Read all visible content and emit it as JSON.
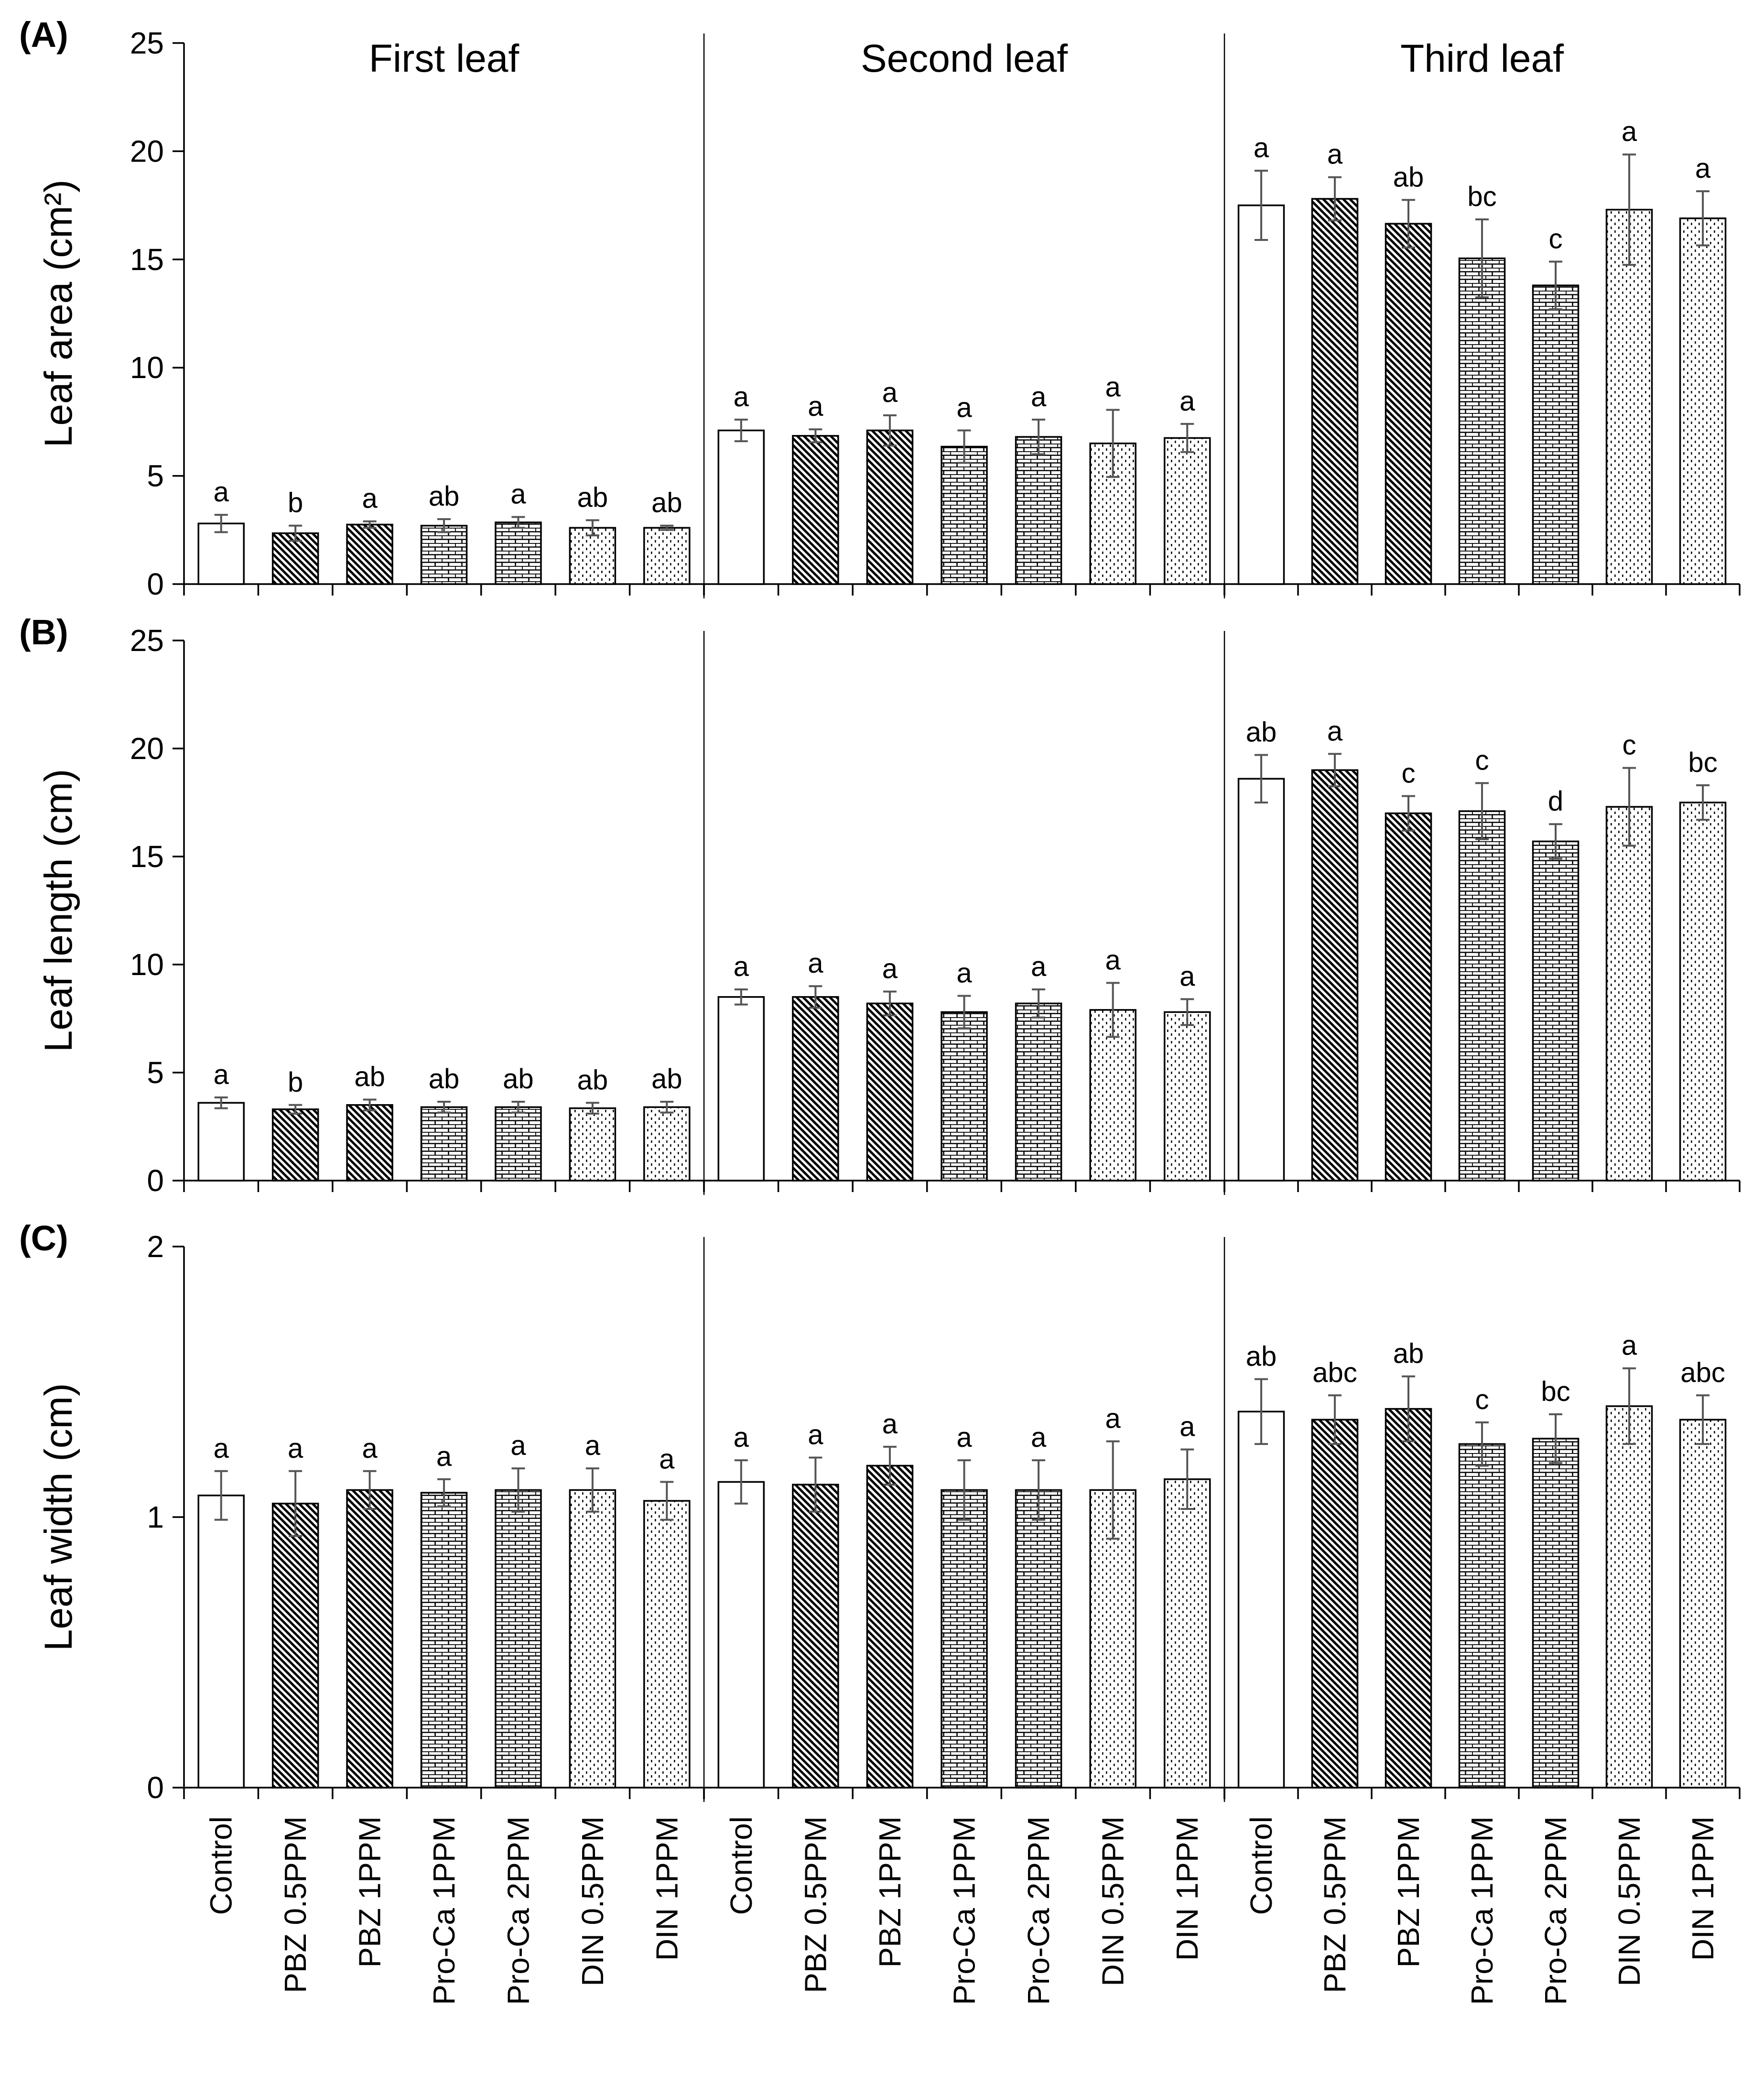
{
  "chart_data": {
    "type": "bar",
    "groups": [
      "First leaf",
      "Second leaf",
      "Third leaf"
    ],
    "categories": [
      "Control",
      "PBZ 0.5PPM",
      "PBZ 1PPM",
      "Pro-Ca 1PPM",
      "Pro-Ca 2PPM",
      "DIN 0.5PPM",
      "DIN 1PPM"
    ],
    "patterns": [
      "blank",
      "diag-dark",
      "diag-dark",
      "brick",
      "brick",
      "dots",
      "dots"
    ],
    "colors": {
      "outline": "#000000",
      "fill": "#ffffff",
      "pattern": "#000000",
      "error_bar": "#555555"
    },
    "panels": [
      {
        "label": "(A)",
        "ylabel": "Leaf area (cm²)",
        "ylim": [
          0,
          25
        ],
        "yticks": [
          0,
          5,
          10,
          15,
          20,
          25
        ],
        "values": [
          [
            2.8,
            2.35,
            2.75,
            2.7,
            2.85,
            2.6,
            2.6
          ],
          [
            7.1,
            6.85,
            7.1,
            6.35,
            6.8,
            6.5,
            6.75
          ],
          [
            17.5,
            17.8,
            16.65,
            15.05,
            13.8,
            17.3,
            16.9
          ]
        ],
        "errors": [
          [
            0.4,
            0.35,
            0.15,
            0.3,
            0.25,
            0.35,
            0.1
          ],
          [
            0.5,
            0.3,
            0.7,
            0.75,
            0.8,
            1.55,
            0.65
          ],
          [
            1.6,
            1.0,
            1.1,
            1.8,
            1.1,
            2.55,
            1.25
          ]
        ],
        "letters": [
          [
            "a",
            "b",
            "a",
            "ab",
            "a",
            "ab",
            "ab"
          ],
          [
            "a",
            "a",
            "a",
            "a",
            "a",
            "a",
            "a"
          ],
          [
            "a",
            "a",
            "ab",
            "bc",
            "c",
            "a",
            "a"
          ]
        ]
      },
      {
        "label": "(B)",
        "ylabel": "Leaf length (cm)",
        "ylim": [
          0,
          25
        ],
        "yticks": [
          0,
          5,
          10,
          15,
          20,
          25
        ],
        "values": [
          [
            3.6,
            3.3,
            3.5,
            3.4,
            3.4,
            3.35,
            3.4
          ],
          [
            8.5,
            8.5,
            8.2,
            7.8,
            8.2,
            7.9,
            7.8
          ],
          [
            18.6,
            19.0,
            17.0,
            17.1,
            15.7,
            17.3,
            17.5
          ]
        ],
        "errors": [
          [
            0.25,
            0.2,
            0.25,
            0.25,
            0.25,
            0.25,
            0.25
          ],
          [
            0.35,
            0.5,
            0.55,
            0.75,
            0.65,
            1.25,
            0.6
          ],
          [
            1.1,
            0.75,
            0.8,
            1.3,
            0.8,
            1.8,
            0.8
          ]
        ],
        "letters": [
          [
            "a",
            "b",
            "ab",
            "ab",
            "ab",
            "ab",
            "ab"
          ],
          [
            "a",
            "a",
            "a",
            "a",
            "a",
            "a",
            "a"
          ],
          [
            "ab",
            "a",
            "c",
            "c",
            "d",
            "c",
            "bc"
          ]
        ]
      },
      {
        "label": "(C)",
        "ylabel": "Leaf width (cm)",
        "ylim": [
          0,
          2
        ],
        "yticks": [
          0,
          1,
          2
        ],
        "values": [
          [
            1.08,
            1.05,
            1.1,
            1.09,
            1.1,
            1.1,
            1.06
          ],
          [
            1.13,
            1.12,
            1.19,
            1.1,
            1.1,
            1.1,
            1.14
          ],
          [
            1.39,
            1.36,
            1.4,
            1.27,
            1.29,
            1.41,
            1.36
          ]
        ],
        "errors": [
          [
            0.09,
            0.12,
            0.07,
            0.05,
            0.08,
            0.08,
            0.07
          ],
          [
            0.08,
            0.1,
            0.07,
            0.11,
            0.11,
            0.18,
            0.11
          ],
          [
            0.12,
            0.09,
            0.12,
            0.08,
            0.09,
            0.14,
            0.09
          ]
        ],
        "letters": [
          [
            "a",
            "a",
            "a",
            "a",
            "a",
            "a",
            "a"
          ],
          [
            "a",
            "a",
            "a",
            "a",
            "a",
            "a",
            "a"
          ],
          [
            "ab",
            "abc",
            "ab",
            "c",
            "bc",
            "a",
            "abc"
          ]
        ]
      }
    ]
  }
}
